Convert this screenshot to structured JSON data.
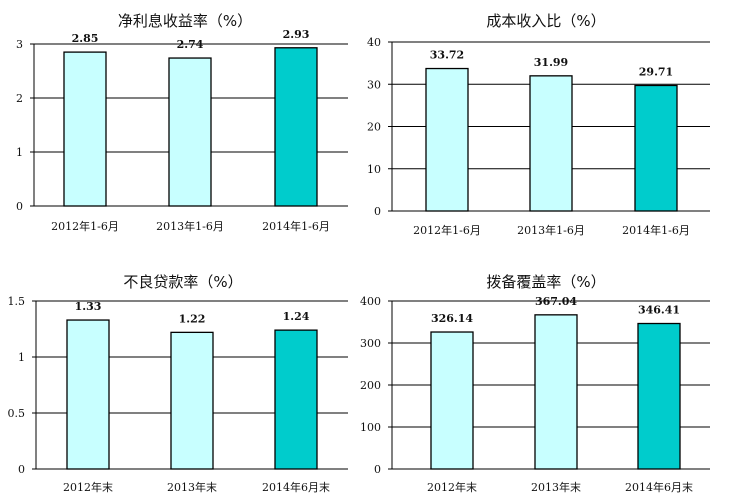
{
  "chart_data": [
    {
      "type": "bar",
      "title": "净利息收益率（%）",
      "categories": [
        "2012年1-6月",
        "2013年1-6月",
        "2014年1-6月"
      ],
      "values": [
        2.85,
        2.74,
        2.93
      ],
      "data_labels": [
        "2.85",
        "2.74",
        "2.93"
      ],
      "ylim": [
        0,
        3
      ],
      "yticks": [
        "0",
        "1",
        "2",
        "3"
      ],
      "grid": true,
      "colors": [
        "#c8ffff",
        "#c8ffff",
        "#00cccc"
      ]
    },
    {
      "type": "bar",
      "title": "成本收入比（%）",
      "categories": [
        "2012年1-6月",
        "2013年1-6月",
        "2014年1-6月"
      ],
      "values": [
        33.72,
        31.99,
        29.71
      ],
      "data_labels": [
        "33.72",
        "31.99",
        "29.71"
      ],
      "ylim": [
        0,
        40
      ],
      "yticks": [
        "0",
        "10",
        "20",
        "30",
        "40"
      ],
      "grid": true,
      "colors": [
        "#c8ffff",
        "#c8ffff",
        "#00cccc"
      ]
    },
    {
      "type": "bar",
      "title": "不良贷款率（%）",
      "categories": [
        "2012年末",
        "2013年末",
        "2014年6月末"
      ],
      "values": [
        1.33,
        1.22,
        1.24
      ],
      "data_labels": [
        "1.33",
        "1.22",
        "1.24"
      ],
      "ylim": [
        0,
        1.5
      ],
      "yticks": [
        "0",
        "0.5",
        "1",
        "1.5"
      ],
      "grid": true,
      "colors": [
        "#c8ffff",
        "#c8ffff",
        "#00cccc"
      ]
    },
    {
      "type": "bar",
      "title": "拨备覆盖率（%）",
      "categories": [
        "2012年末",
        "2013年末",
        "2014年6月末"
      ],
      "values": [
        326.14,
        367.04,
        346.41
      ],
      "data_labels": [
        "326.14",
        "367.04",
        "346.41"
      ],
      "ylim": [
        0,
        400
      ],
      "yticks": [
        "0",
        "100",
        "200",
        "300",
        "400"
      ],
      "grid": true,
      "colors": [
        "#c8ffff",
        "#c8ffff",
        "#00cccc"
      ]
    }
  ]
}
